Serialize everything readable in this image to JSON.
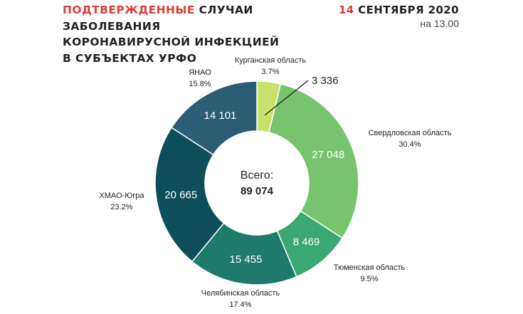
{
  "header": {
    "title_lines": [
      {
        "accent": "ПОДТВЕРЖДЕННЫЕ",
        "rest": " СЛУЧАИ"
      },
      {
        "accent": "",
        "rest": "ЗАБОЛЕВАНИЯ"
      },
      {
        "accent": "",
        "rest": "КОРОНАВИРУСНОЙ ИНФЕКЦИЕЙ"
      },
      {
        "accent": "",
        "rest": "В СУБЪЕКТАХ УРФО"
      }
    ],
    "date_num": "14",
    "date_rest": " СЕНТЯБРЯ 2020",
    "time": "на 13.00"
  },
  "colors": {
    "accent": "#d9403a",
    "leader_line": "#111111"
  },
  "chart_data": {
    "type": "pie",
    "donut": true,
    "center_label": "Всего:",
    "center_value": "89 074",
    "slices": [
      {
        "name": "Курганская область",
        "value": 3336,
        "value_label": "3 336",
        "percent": "3.7%",
        "color": "#c8e06c",
        "label_color": "#222222",
        "value_outside": true
      },
      {
        "name": "Свердловская область",
        "value": 27048,
        "value_label": "27 048",
        "percent": "30.4%",
        "color": "#78c46e",
        "label_color": "#ffffff"
      },
      {
        "name": "Тюменская область",
        "value": 8469,
        "value_label": "8 469",
        "percent": "9.5%",
        "color": "#3aa872",
        "label_color": "#ffffff"
      },
      {
        "name": "Челябинская область",
        "value": 15455,
        "value_label": "15 455",
        "percent": "17.4%",
        "color": "#1e7a6a",
        "label_color": "#ffffff"
      },
      {
        "name": "ХМАО-Югра",
        "value": 20665,
        "value_label": "20 665",
        "percent": "23.2%",
        "color": "#0e4e5a",
        "label_color": "#ffffff"
      },
      {
        "name": "ЯНАО",
        "value": 14101,
        "value_label": "14 101",
        "percent": "15.8%",
        "color": "#2b5d75",
        "label_color": "#ffffff"
      }
    ]
  }
}
